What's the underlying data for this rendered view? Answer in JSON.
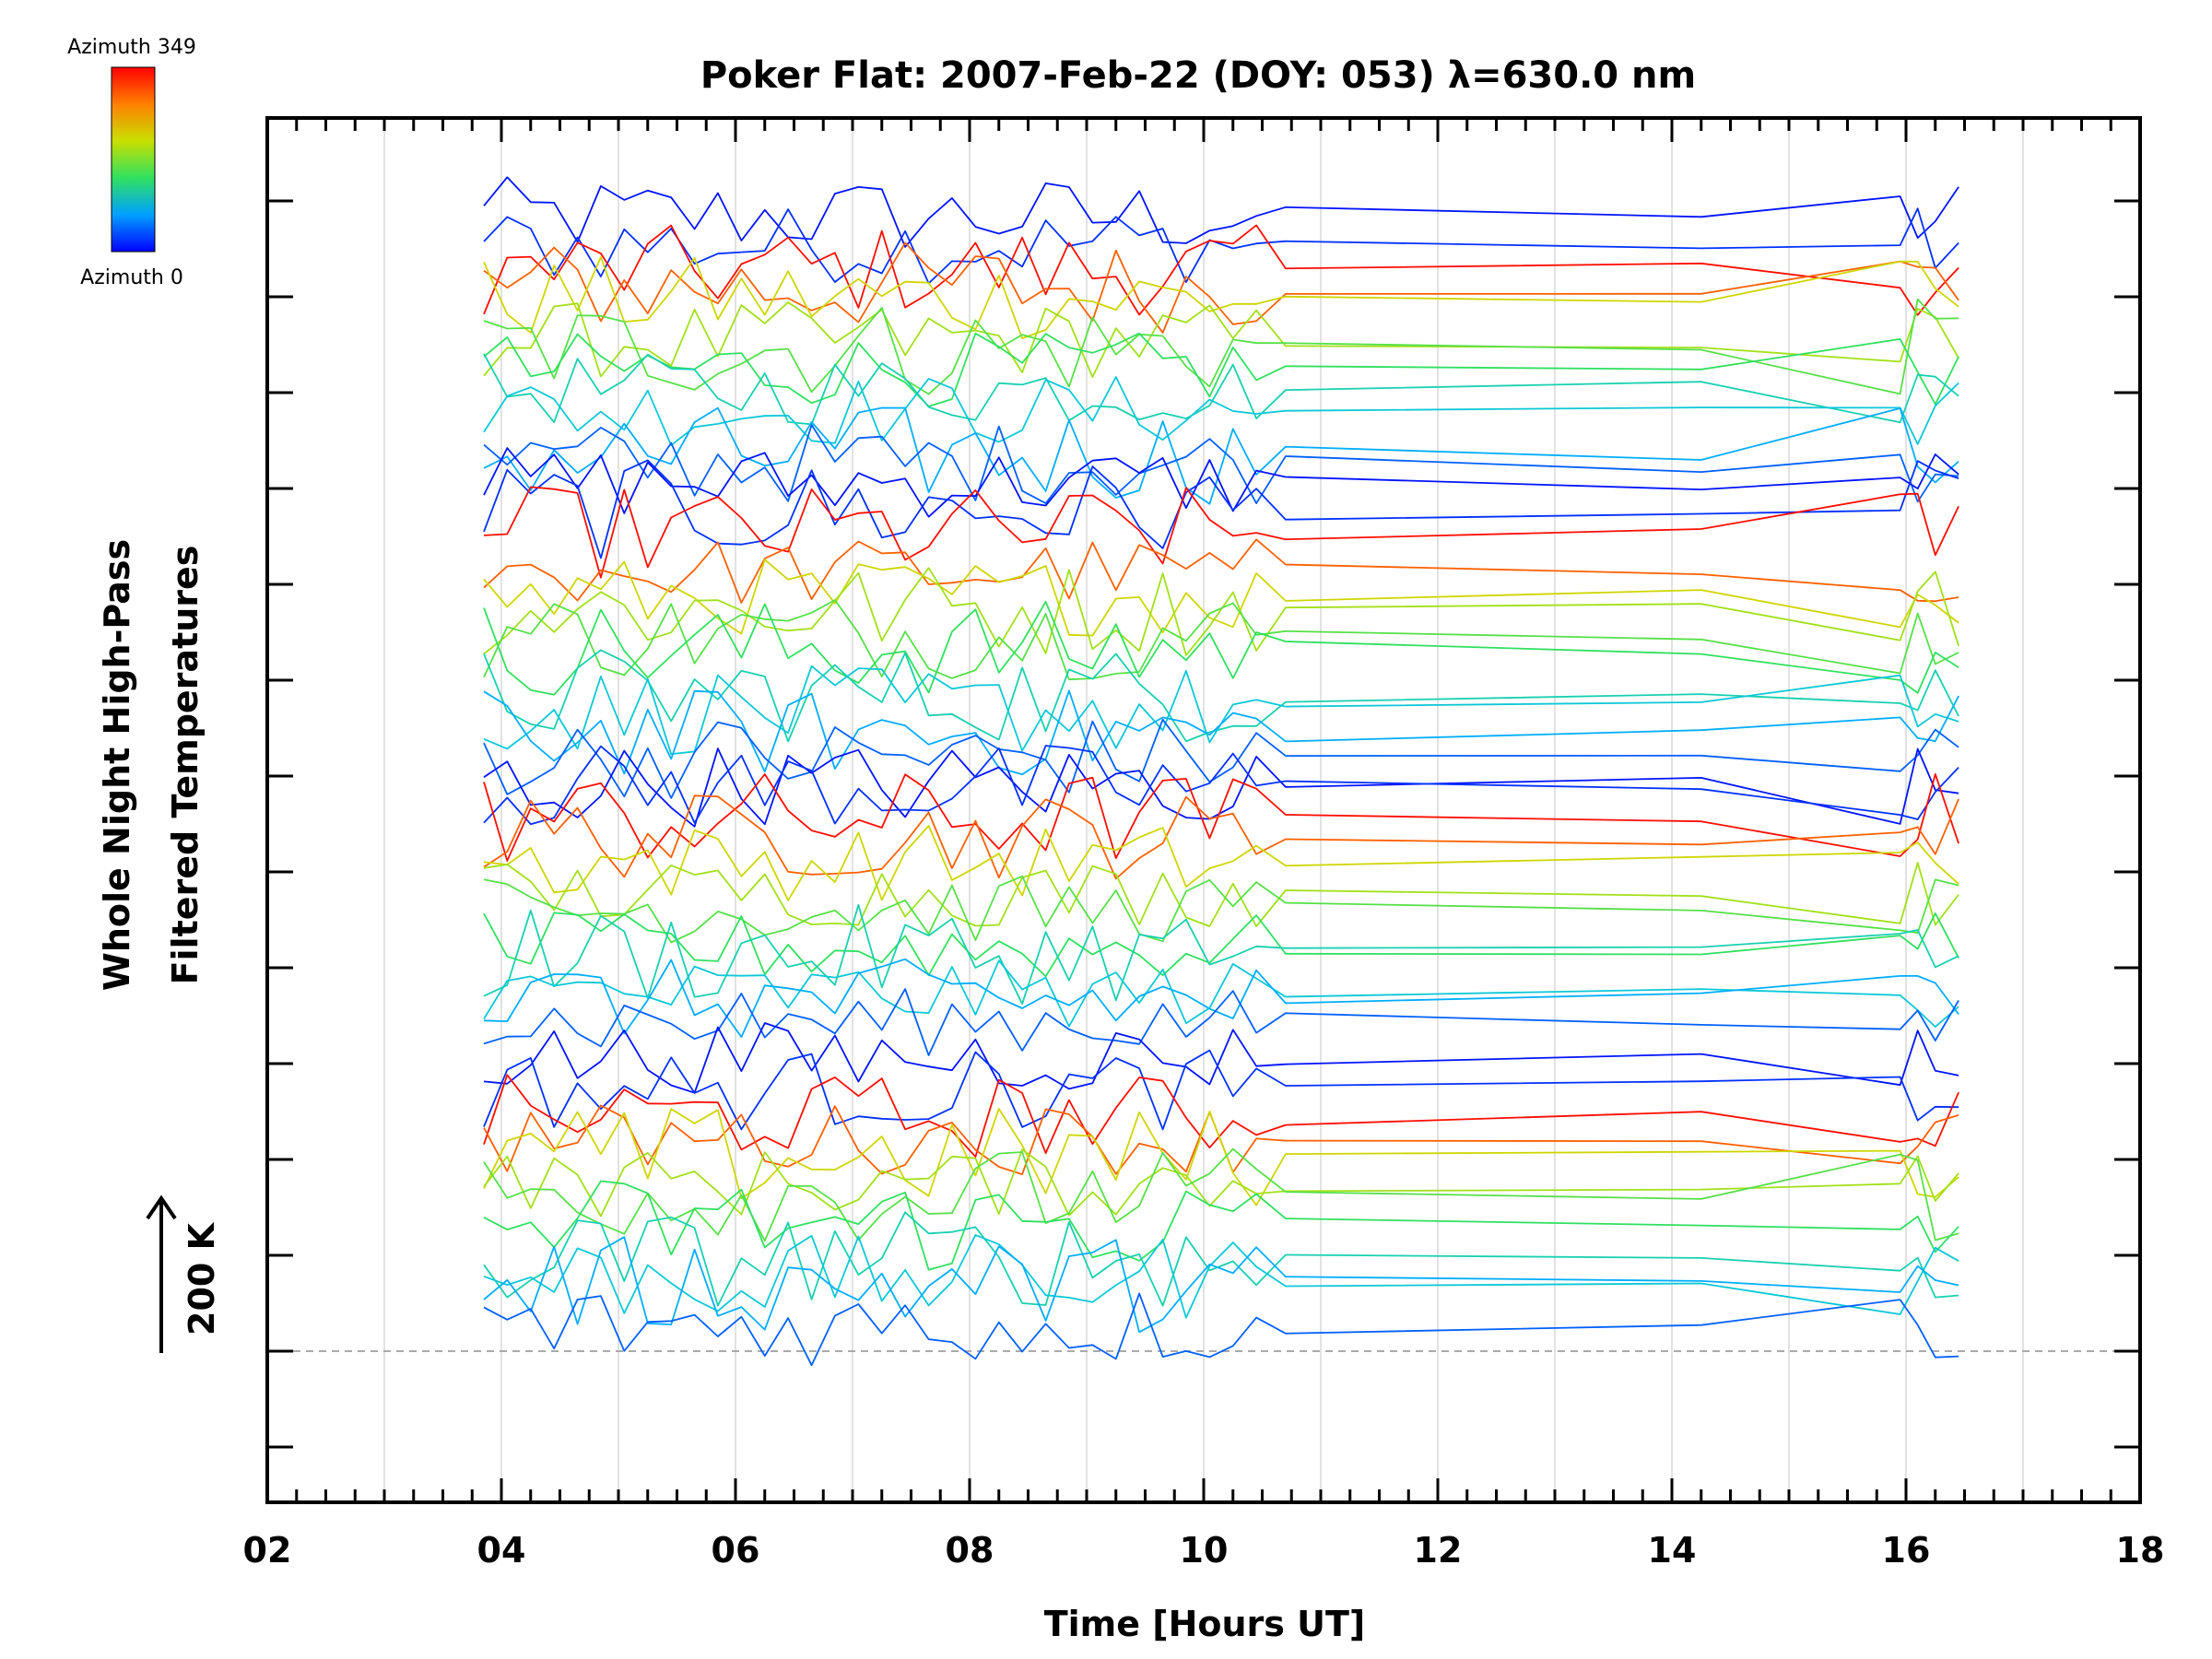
{
  "chart_data": {
    "type": "line",
    "title": "Poker Flat: 2007-Feb-22 (DOY: 053) λ=630.0 nm",
    "xlabel": "Time [Hours UT]",
    "ylabel_line1": "Whole Night High-Pass",
    "ylabel_line2": "Filtered Temperatures",
    "xlim": [
      2,
      18
    ],
    "x_tick_labels": [
      "02",
      "04",
      "06",
      "08",
      "10",
      "12",
      "14",
      "16",
      "18"
    ],
    "x_tick_values": [
      2,
      4,
      6,
      8,
      10,
      12,
      14,
      16,
      18
    ],
    "scale_bar_label": "200 K",
    "colorbar": {
      "max_label": "Azimuth 349",
      "min_label": "Azimuth 0",
      "colors": [
        "#0000ff",
        "#00c0ff",
        "#30e060",
        "#c8e000",
        "#ff8000",
        "#ff0000"
      ]
    },
    "series_note": "Stacked, vertically offset time series for 48 azimuth bins; offsets in series units (200 K per scale bar)",
    "time_points": [
      3.85,
      4.05,
      4.25,
      4.45,
      4.65,
      4.85,
      5.05,
      5.25,
      5.45,
      5.65,
      5.85,
      6.05,
      6.25,
      6.45,
      6.65,
      6.85,
      7.05,
      7.25,
      7.45,
      7.65,
      7.85,
      8.05,
      8.25,
      8.45,
      8.65,
      8.85,
      9.05,
      9.25,
      9.45,
      9.65,
      9.85,
      10.05,
      10.25,
      10.45,
      10.7,
      14.25,
      15.95,
      16.1,
      16.25,
      16.45
    ],
    "series_count": 48,
    "series_offset_step": 1.0
  }
}
